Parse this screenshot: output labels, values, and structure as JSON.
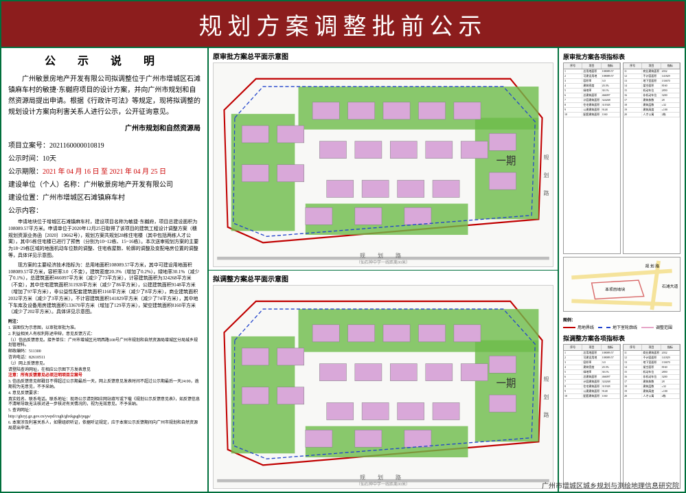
{
  "colors": {
    "frame": "#006f3c",
    "title_bg": "#8c1d1d",
    "title_fg": "#ffffff",
    "highlight": "#cc0000",
    "green_area": "#6dbb4a",
    "building": "#d9a8d9",
    "road_line": "#bdbdbd",
    "legend_red": "#c00000",
    "legend_blue": "#2244cc",
    "legend_pink": "#e7a6c8",
    "loc_site": "#d96a6a",
    "loc_road": "#f5e39b"
  },
  "title": "规划方案调整批前公示",
  "notice": {
    "header": "公 示 说 明",
    "body": "广州敏景房地产开发有限公司拟调整位于广州市增城区石滩镇麻车村的敏捷·东樾府项目的设计方案，并向广州市规划和自然资源局提出申请。根据《行政许可法》等规定，现将拟调整的规划设计方案向利害关系人进行公示，公开征询意见。",
    "bureau": "广州市规划和自然资源局",
    "case_no_label": "项目立案号：",
    "case_no": "2021160000010819",
    "duration_label": "公示时间：",
    "duration": "10天",
    "period_label": "公示期限：",
    "period": "2021 年 04 月 16 日 至 2021 年 04 月 25 日",
    "applicant_label": "建设单位（个人）名称：",
    "applicant": "广州敏景房地产开发有限公司",
    "location_label": "建设位置：",
    "location": "广州市增城区石滩镇麻车村",
    "content_label": "公示内容：",
    "content_p1": "申请地块位于增城区石滩镇麻车村，建设项目名称为敏捷·东樾府，项目总建设面积为108089.57平方米。申请单位于2020年12月25日取得了该项目的建筑工程设计调整方案（穗规划资源业务函〔2020〕19662号），规划方案共规划28栋住宅楼（其中包括两栋人才公寓），其中5栋住宅楼已进行了预售（分别为10~12栋、15~16栋）。本次送审规划方案的主要为18~29栋区域的地面机动车位数的调整、住宅栋屋数、轮廓的调整及变配电房位置的调整等，具体详见示意图。",
    "content_p2": "现方案的主要经济技术指标为：总用地面积108089.57平方米，其中可建设用地面积108089.57平方米，容积率3.0（不变），建筑密度20.3%（增加了0.2%），绿地率30.1%（减少了0.1%），总建筑面积466097平方米（减少了73平方米），计容建筑面积为324268平方米（不变），其中住宅建筑面积311928平方米（减少了86平方米），公建建筑面积9148平方米（增加了97平方米），非公益性配套建筑面积1160平方米（减少了8平方米），商业建筑面积2032平方米（减少了3平方米），不计容建筑面积141829平方米（减少了74平方米），其中地下车库及设备用房建筑面积133670平方米（增加了129平方米），架空建筑面积8160平方米（减少了202平方米）。具体详见示意图。"
  },
  "footnotes": {
    "header": "附注：",
    "items": [
      "1. 该图仅为示意图，以审批审批为准。",
      "2. 利益相关人有权利陈述申辩，意见反馈方式：",
      "（1）信函反馈意见。接件单位：广州市增城区光明西路108号广州市规划和自然资源局增城区分局城乡规划管理科。",
      "邮政编码：511300",
      "咨询电话：82610511",
      "（2）网上反馈意见。",
      "请登陆查询网址，在相应公示图下方发表意见"
    ],
    "warning": "注意：所有反馈意见必须注明项目立案号",
    "items2": [
      "3. 信函反馈意见邮戳日不得超过公示期最后一天，网上反馈意见发表时间不超过公示期最后一天24:00，逾期视为无意见，不予采纳。",
      "4. 意见反馈要求：",
      "真实姓名、联系电话。联系地址：现场公示请到相应网站填写或下载《规划公示反馈意见表》，如反馈信息不清晰导致无法核对进一步核对有关情况的，视为无效意见。不予采纳。",
      "5. 查询网址：",
      "http://ghzyj.gz.gov.cn/ywpd/cxgh/ghxkgsgb/pqgs/",
      "6. 本案涉及利害关系人，如需组织听证，依据听证规定，应于本案公示反馈期间向广州市规划和自然资源局提出申请。"
    ]
  },
  "plans": {
    "original_title": "原审批方案总平面示意图",
    "adjusted_title": "拟调整方案总平面示意图",
    "road_bottom": "规 划 路",
    "road_right": "规 划 路",
    "sub_label": "（仙石神中学一线距离90米）",
    "phase_label": "一期"
  },
  "right": {
    "orig_table_title": "原审批方案各项指标表",
    "adj_table_title": "拟调整方案各项指标表",
    "legend_title": "图例：",
    "legend_items": [
      {
        "label": "用地界线",
        "key": "legend_red",
        "style": "solid"
      },
      {
        "label": "地下室轮廓线",
        "key": "legend_blue",
        "style": "dashed"
      },
      {
        "label": "调整范围",
        "key": "legend_pink",
        "style": "solid"
      }
    ],
    "loc_labels": {
      "road1": "规 划 路",
      "road2": "石滩大道",
      "site": "本项目地块"
    },
    "index_headers": [
      "序号",
      "项目",
      "指标"
    ],
    "index_rows": [
      [
        "1",
        "总用地面积",
        "108089.57"
      ],
      [
        "2",
        "可建设用地",
        "108089.57"
      ],
      [
        "3",
        "容积率",
        "3.0"
      ],
      [
        "4",
        "建筑密度",
        "20.3%"
      ],
      [
        "5",
        "绿地率",
        "30.1%"
      ],
      [
        "6",
        "总建筑面积",
        "466097"
      ],
      [
        "7",
        "计容建筑面积",
        "324268"
      ],
      [
        "8",
        "住宅建筑面积",
        "311928"
      ],
      [
        "9",
        "公建建筑面积",
        "9148"
      ],
      [
        "10",
        "配套建筑面积",
        "1160"
      ],
      [
        "11",
        "商业建筑面积",
        "2032"
      ],
      [
        "12",
        "不计容面积",
        "141829"
      ],
      [
        "13",
        "地下室面积",
        "133670"
      ],
      [
        "14",
        "架空面积",
        "8160"
      ],
      [
        "15",
        "机动车位",
        "2850"
      ],
      [
        "16",
        "非机动车位",
        "3200"
      ],
      [
        "17",
        "建筑栋数",
        "28"
      ],
      [
        "18",
        "建筑层数",
        "≤32"
      ],
      [
        "19",
        "建筑高度",
        "≤100"
      ],
      [
        "20",
        "人才公寓",
        "2栋"
      ]
    ]
  },
  "publisher": "广州市增城区城乡规划与测绘地理信息研究院"
}
